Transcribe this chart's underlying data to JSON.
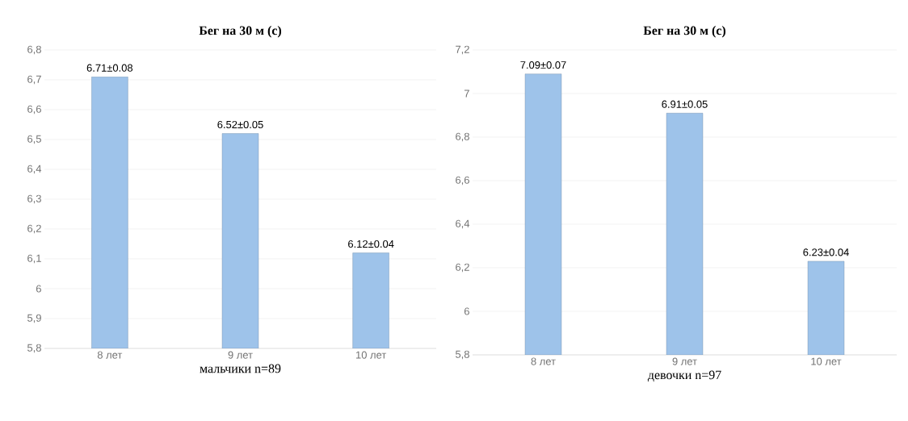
{
  "chart_data": [
    {
      "type": "bar",
      "title": "Бег на 30 м (с)",
      "xlabel": "мальчики n=89",
      "categories": [
        "8 лет",
        "9 лет",
        "10 лет"
      ],
      "values": [
        6.71,
        6.52,
        6.12
      ],
      "value_labels": [
        "6.71±0.08",
        "6.52±0.05",
        "6.12±0.04"
      ],
      "color": "#9ec3ea",
      "ylim": [
        5.8,
        6.8
      ],
      "yticks": [
        {
          "value": 5.8,
          "label": "5,8"
        },
        {
          "value": 5.9,
          "label": "5,9"
        },
        6,
        {
          "value": 6.1,
          "label": "6,1"
        },
        {
          "value": 6.2,
          "label": "6,2"
        },
        {
          "value": 6.3,
          "label": "6,3"
        },
        {
          "value": 6.4,
          "label": "6,4"
        },
        {
          "value": 6.5,
          "label": "6,5"
        },
        {
          "value": 6.6,
          "label": "6,6"
        },
        {
          "value": 6.7,
          "label": "6,7"
        },
        {
          "value": 6.8,
          "label": "6,8"
        }
      ],
      "grid": "y"
    },
    {
      "type": "bar",
      "title": "Бег на 30 м (с)",
      "xlabel": "девочки n=97",
      "categories": [
        "8 лет",
        "9 лет",
        "10 лет"
      ],
      "values": [
        7.09,
        6.91,
        6.23
      ],
      "value_labels": [
        "7.09±0.07",
        "6.91±0.05",
        "6.23±0.04"
      ],
      "color": "#9ec3ea",
      "ylim": [
        5.8,
        7.2
      ],
      "yticks": [
        {
          "value": 5.8,
          "label": "5,8"
        },
        6,
        {
          "value": 6.2,
          "label": "6,2"
        },
        {
          "value": 6.4,
          "label": "6,4"
        },
        {
          "value": 6.6,
          "label": "6,6"
        },
        {
          "value": 6.8,
          "label": "6,8"
        },
        7,
        {
          "value": 7.2,
          "label": "7,2"
        }
      ],
      "grid": "y"
    }
  ]
}
